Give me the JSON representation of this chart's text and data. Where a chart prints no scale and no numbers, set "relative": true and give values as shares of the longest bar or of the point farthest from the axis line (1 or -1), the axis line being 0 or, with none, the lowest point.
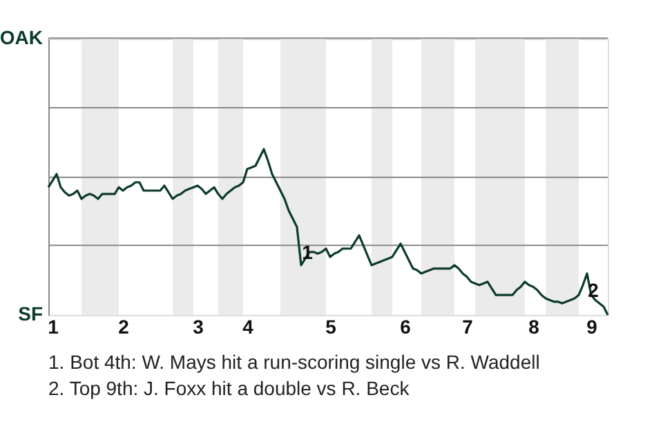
{
  "chart_data": {
    "type": "line",
    "relative": true,
    "categories": [
      null,
      "1",
      null,
      null,
      null,
      null,
      null,
      null,
      null,
      null,
      null,
      null,
      null,
      null,
      null,
      null,
      null,
      null,
      "2",
      null,
      null,
      null,
      null,
      null,
      null,
      null,
      null,
      null,
      null,
      null,
      null,
      null,
      null,
      null,
      null,
      null,
      "3",
      null,
      null,
      null,
      null,
      null,
      null,
      null,
      null,
      null,
      null,
      null,
      "4",
      null,
      null,
      null,
      null,
      null,
      null,
      null,
      null,
      null,
      null,
      null,
      null,
      null,
      null,
      null,
      null,
      null,
      null,
      null,
      "5",
      null,
      null,
      null,
      null,
      null,
      null,
      null,
      null,
      null,
      null,
      null,
      null,
      null,
      null,
      null,
      null,
      null,
      "6",
      null,
      null,
      null,
      null,
      null,
      null,
      null,
      null,
      null,
      null,
      null,
      null,
      null,
      null,
      "7",
      null,
      null,
      null,
      null,
      null,
      null,
      null,
      null,
      null,
      null,
      null,
      null,
      null,
      null,
      null,
      "8",
      null,
      null,
      null,
      null,
      null,
      null,
      null,
      null,
      null,
      null,
      null,
      null,
      null,
      "9",
      null,
      null,
      null,
      null
    ],
    "series": [
      {
        "color": "#0d3b2e",
        "values": [
          0.77,
          0.81,
          0.85,
          0.77,
          0.74,
          0.72,
          0.73,
          0.75,
          0.7,
          0.72,
          0.73,
          0.72,
          0.7,
          0.73,
          0.73,
          0.73,
          0.73,
          0.77,
          0.75,
          0.77,
          0.78,
          0.8,
          0.8,
          0.75,
          0.75,
          0.75,
          0.75,
          0.75,
          0.78,
          0.74,
          0.7,
          0.72,
          0.73,
          0.75,
          0.76,
          0.77,
          0.78,
          0.76,
          0.73,
          0.75,
          0.77,
          0.73,
          0.7,
          0.73,
          0.75,
          0.77,
          0.78,
          0.8,
          0.88,
          0.89,
          0.9,
          0.95,
          1,
          0.93,
          0.85,
          0.8,
          0.75,
          0.7,
          0.63,
          0.58,
          0.53,
          0.3,
          0.34,
          0.38,
          0.38,
          0.37,
          0.38,
          0.4,
          0.35,
          0.37,
          0.38,
          0.4,
          0.4,
          0.4,
          0.44,
          0.48,
          0.42,
          0.36,
          0.3,
          0.31,
          0.32,
          0.33,
          0.34,
          0.35,
          0.39,
          0.43,
          0.38,
          0.33,
          0.28,
          0.27,
          0.25,
          0.26,
          0.27,
          0.28,
          0.28,
          0.28,
          0.28,
          0.28,
          0.3,
          0.28,
          0.25,
          0.23,
          0.2,
          0.19,
          0.18,
          0.19,
          0.2,
          0.16,
          0.12,
          0.12,
          0.12,
          0.12,
          0.12,
          0.15,
          0.17,
          0.2,
          0.18,
          0.17,
          0.15,
          0.12,
          0.1,
          0.09,
          0.08,
          0.08,
          0.07,
          0.08,
          0.09,
          0.1,
          0.12,
          0.18,
          0.25,
          0.12,
          0.09,
          0.07,
          0.05,
          0
        ]
      }
    ],
    "ref_lines": [
      {
        "axis": "y",
        "value": 0.42,
        "color": "#888888"
      },
      {
        "axis": "y",
        "value": 0.83,
        "color": "#888888"
      },
      {
        "axis": "y",
        "value": 1.25,
        "color": "#888888"
      },
      {
        "axis": "y",
        "value": 1.67,
        "color": "#888888"
      }
    ],
    "annotations": [
      "OAK",
      "SF",
      {
        "text": "1",
        "y": 0.37
      },
      {
        "text": "2",
        "y": 0.14
      },
      "1. Bot 4th: W. Mays hit a run-scoring single vs R. Waddell",
      "2. Top 9th: J. Foxx hit a double vs R. Beck"
    ]
  }
}
